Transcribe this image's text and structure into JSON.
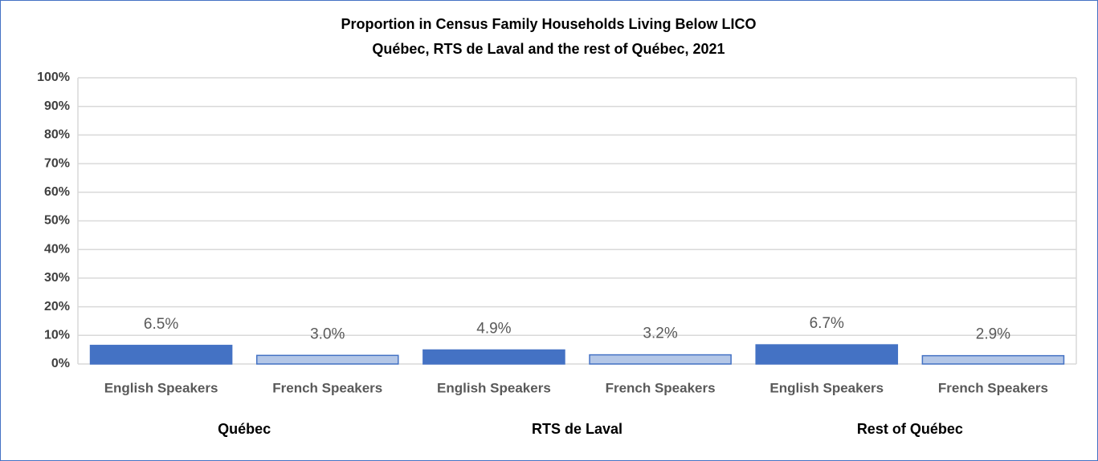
{
  "chart_data": {
    "type": "bar",
    "title": "Proportion in Census Family Households Living Below LICO",
    "subtitle": "Québec, RTS de Laval and the rest of Québec, 2021",
    "categories": [
      "English Speakers",
      "French Speakers",
      "English Speakers",
      "French Speakers",
      "English Speakers",
      "French Speakers"
    ],
    "groups": [
      "Québec",
      "RTS de Laval",
      "Rest of Québec"
    ],
    "values": [
      6.5,
      3.0,
      4.9,
      3.2,
      6.7,
      2.9
    ],
    "value_labels": [
      "6.5%",
      "3.0%",
      "4.9%",
      "3.2%",
      "6.7%",
      "2.9%"
    ],
    "colors": [
      "#4472c4",
      "#b4c7e7",
      "#4472c4",
      "#b4c7e7",
      "#4472c4",
      "#b4c7e7"
    ],
    "ylim": [
      0,
      100
    ],
    "yticks": [
      {
        "value": 0,
        "label": "0%"
      },
      {
        "value": 10,
        "label": "10%"
      },
      {
        "value": 20,
        "label": "20%"
      },
      {
        "value": 30,
        "label": "30%"
      },
      {
        "value": 40,
        "label": "40%"
      },
      {
        "value": 50,
        "label": "50%"
      },
      {
        "value": 60,
        "label": "60%"
      },
      {
        "value": 70,
        "label": "70%"
      },
      {
        "value": 80,
        "label": "80%"
      },
      {
        "value": 90,
        "label": "90%"
      },
      {
        "value": 100,
        "label": "100%"
      }
    ],
    "grid": true
  }
}
